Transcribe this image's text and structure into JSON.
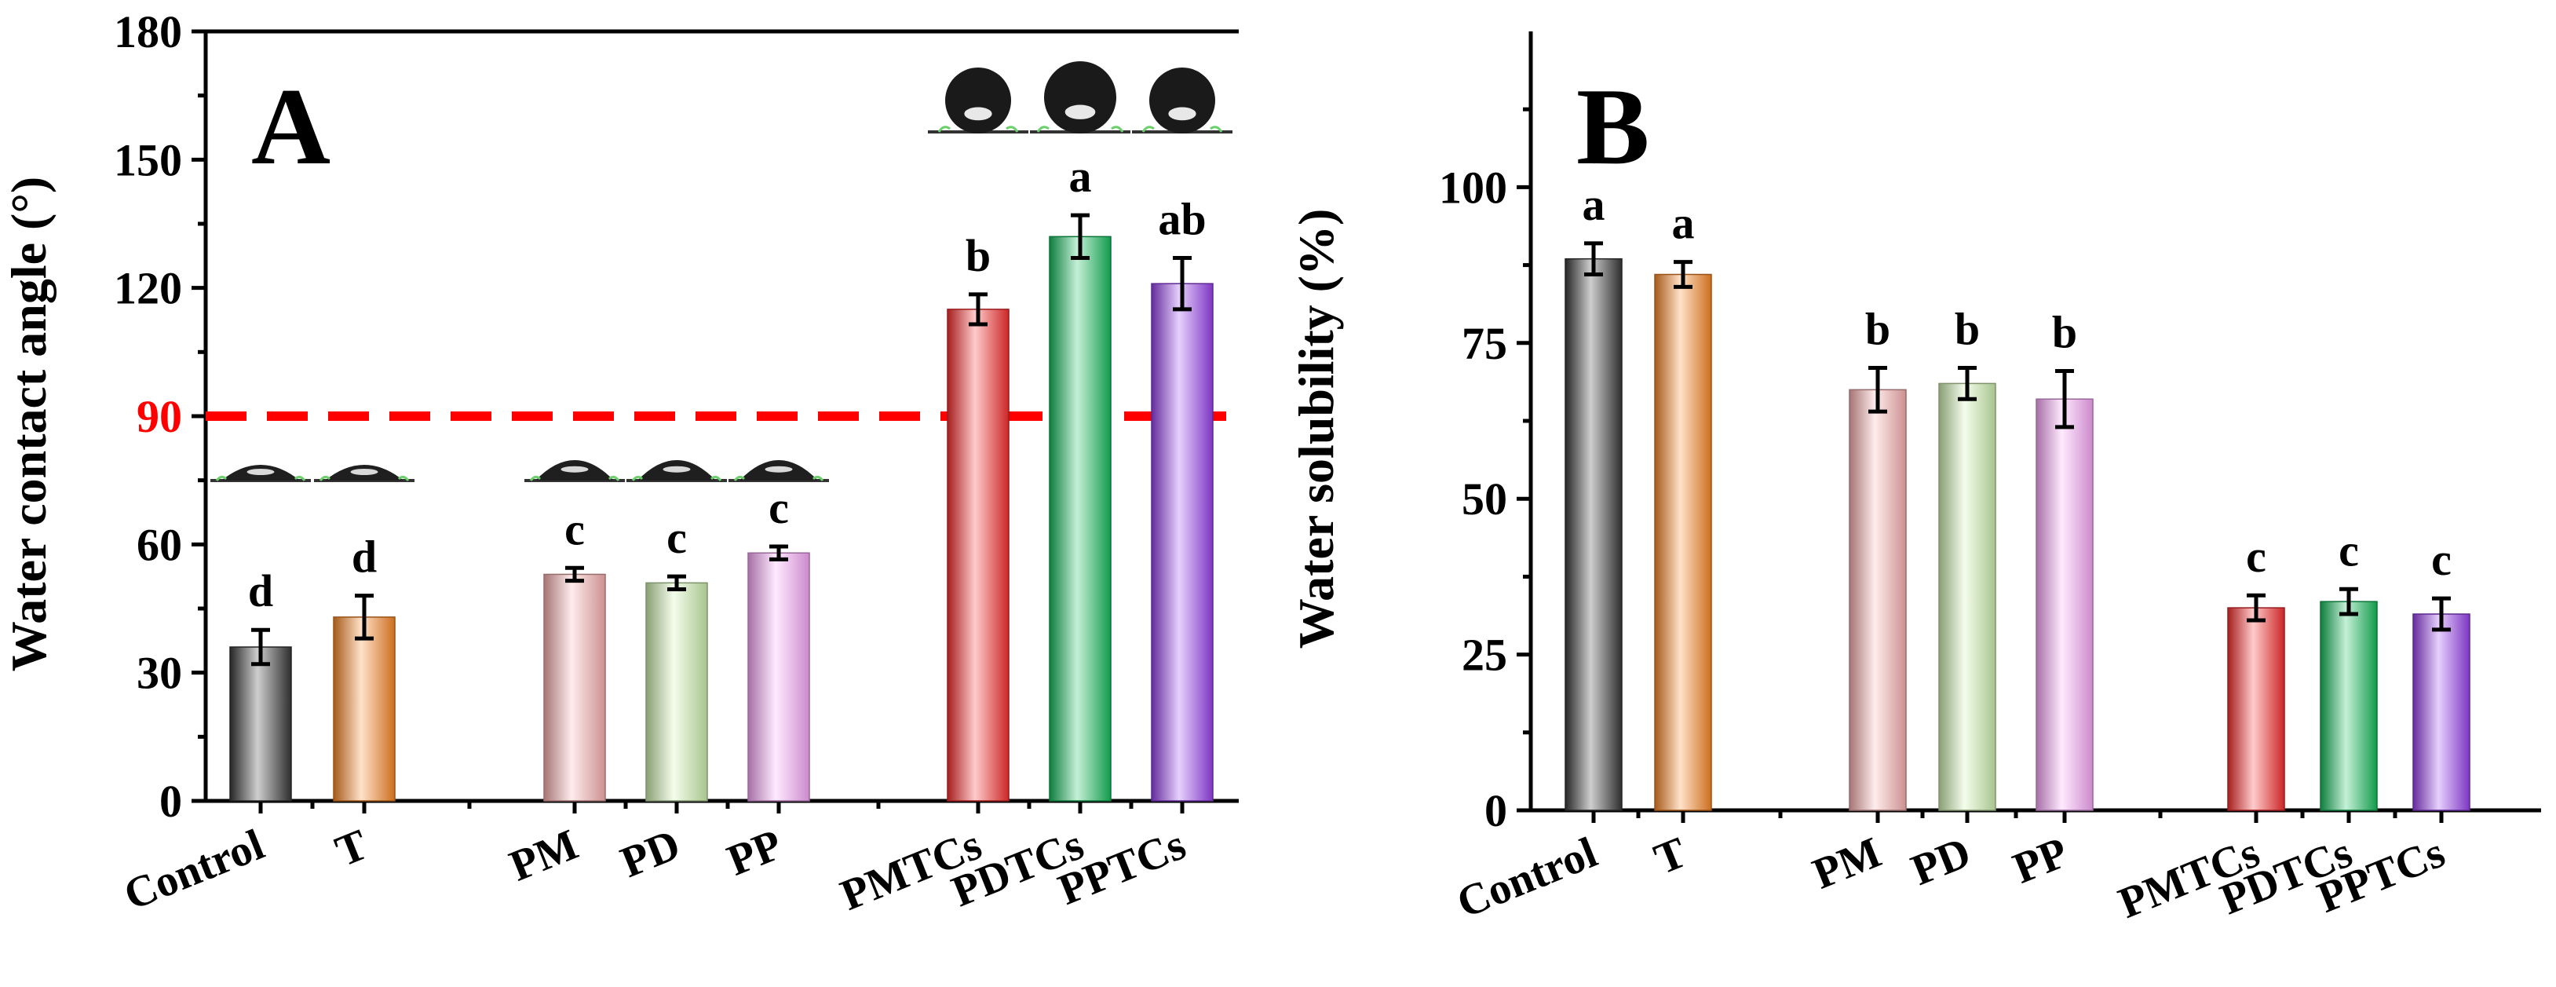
{
  "chart_data": [
    {
      "type": "bar",
      "panel_label": "A",
      "title": "",
      "xlabel": "",
      "ylabel": "Water contact angle (°)",
      "ylim": [
        0,
        180
      ],
      "yticks": [
        0,
        30,
        60,
        90,
        120,
        150,
        180
      ],
      "highlight_ticks": [
        90
      ],
      "highlight_color": "#ff0000",
      "reference_line": {
        "value": 90,
        "color": "#ff0000",
        "style": "dashed"
      },
      "grid": false,
      "categories": [
        "Control",
        "T",
        "PM",
        "PD",
        "PP",
        "PMTCs",
        "PDTCs",
        "PPTCs"
      ],
      "groups": [
        [
          0,
          1
        ],
        [
          2,
          3,
          4
        ],
        [
          5,
          6,
          7
        ]
      ],
      "values": [
        36,
        43,
        53,
        51,
        58,
        115,
        132,
        121
      ],
      "errors": [
        4,
        5,
        1.5,
        1.5,
        1.5,
        3.5,
        5,
        6
      ],
      "letters": [
        "d",
        "d",
        "c",
        "c",
        "c",
        "b",
        "a",
        "ab"
      ],
      "colors": [
        "#3a3a3a",
        "#ff8a26",
        "#ffb4b4",
        "#d2f5b2",
        "#ffacff",
        "#ff2f2f",
        "#16c25e",
        "#9c43f2"
      ],
      "droplet_insets": true
    },
    {
      "type": "bar",
      "panel_label": "B",
      "title": "",
      "xlabel": "",
      "ylabel": "Water solubility (%)",
      "ylim": [
        0,
        125
      ],
      "yticks": [
        0,
        25,
        50,
        75,
        100
      ],
      "grid": false,
      "categories": [
        "Control",
        "T",
        "PM",
        "PD",
        "PP",
        "PMTCs",
        "PDTCs",
        "PPTCs"
      ],
      "groups": [
        [
          0,
          1
        ],
        [
          2,
          3,
          4
        ],
        [
          5,
          6,
          7
        ]
      ],
      "values": [
        88.5,
        86,
        67.5,
        68.5,
        66,
        32.5,
        33.5,
        31.5
      ],
      "errors": [
        2.5,
        2,
        3.5,
        2.5,
        4.5,
        2,
        2,
        2.5
      ],
      "letters": [
        "a",
        "a",
        "b",
        "b",
        "b",
        "c",
        "c",
        "c"
      ],
      "colors": [
        "#3a3a3a",
        "#ff8a26",
        "#ffb4b4",
        "#d2f5b2",
        "#ffacff",
        "#ff2f2f",
        "#16c25e",
        "#9c43f2"
      ]
    }
  ]
}
